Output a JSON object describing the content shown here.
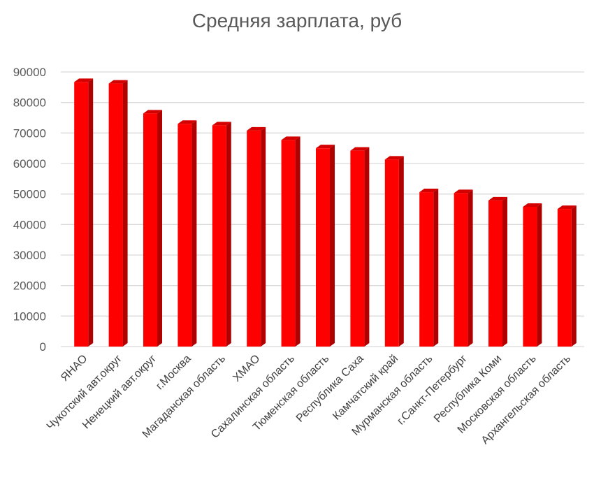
{
  "chart_data": {
    "type": "bar",
    "title": "Средняя зарплата, руб",
    "xlabel": "",
    "ylabel": "",
    "ylim": [
      0,
      90000
    ],
    "yticks": [
      0,
      10000,
      20000,
      30000,
      40000,
      50000,
      60000,
      70000,
      80000,
      90000
    ],
    "grid": true,
    "legend": "none",
    "categories": [
      "ЯНАО",
      "Чукотский авт.округ",
      "Ненецкий авт.округ",
      "г.Москва",
      "Магаданская область",
      "ХМАО",
      "Сахалинская область",
      "Тюменская область",
      "Республика Саха",
      "Камчатский край",
      "Мурманская область",
      "г.Санкт-Петербург",
      "Республика Коми",
      "Московская область",
      "Архангельская область"
    ],
    "values": [
      86700,
      86200,
      76400,
      73000,
      72500,
      70800,
      67700,
      65000,
      64200,
      61300,
      50600,
      50300,
      47900,
      45800,
      45100
    ],
    "colors": {
      "bar_front": "#ff0000",
      "bar_side": "#b00000",
      "bar_top": "#d40000",
      "grid": "#d9d9d9",
      "text": "#595959"
    }
  }
}
